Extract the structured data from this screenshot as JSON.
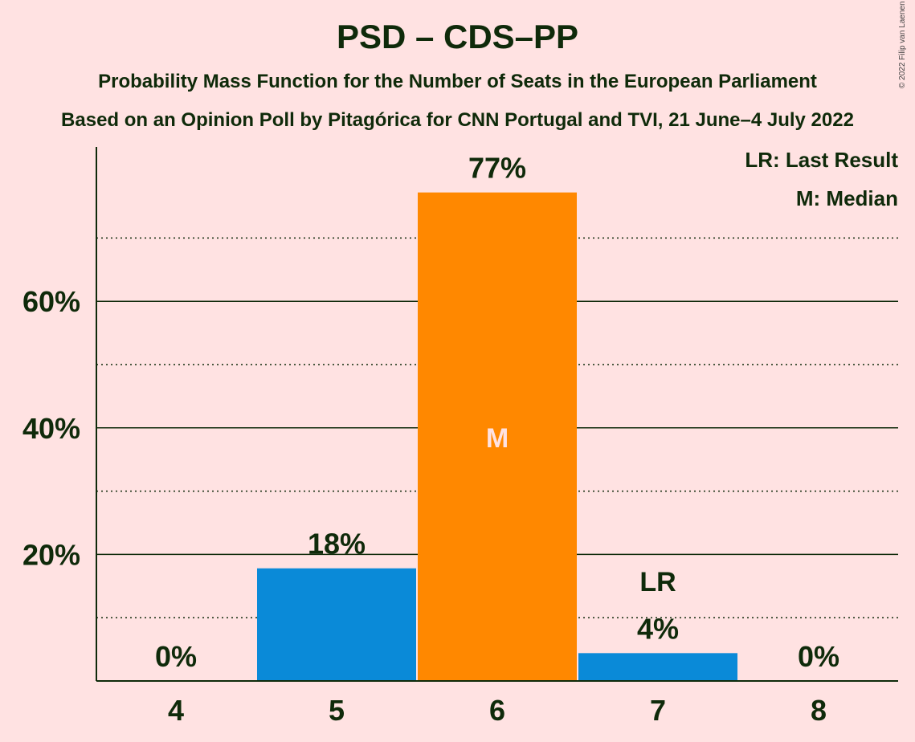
{
  "header": {
    "title": "PSD – CDS–PP",
    "subtitle1": "Probability Mass Function for the Number of Seats in the European Parliament",
    "subtitle2": "Based on an Opinion Poll by Pitagórica for CNN Portugal and TVI, 21 June–4 July 2022",
    "copyright": "© 2022 Filip van Laenen"
  },
  "legend": {
    "last_result": "LR: Last Result",
    "median": "M: Median"
  },
  "chart_data": {
    "type": "bar",
    "categories": [
      "4",
      "5",
      "6",
      "7",
      "8"
    ],
    "values": [
      0,
      18,
      77,
      4,
      0
    ],
    "value_labels": [
      "0%",
      "18%",
      "77%",
      "4%",
      "0%"
    ],
    "bar_fraction": [
      0,
      0.178,
      0.772,
      0.044,
      0
    ],
    "bar_colors": [
      "#0A8AD8",
      "#0A8AD8",
      "#FF8800",
      "#0A8AD8",
      "#0A8AD8"
    ],
    "median_index": 2,
    "median_label": "M",
    "last_result_index": 3,
    "last_result_label": "LR",
    "ylim": [
      0,
      85
    ],
    "yticks": [
      20,
      40,
      60
    ],
    "ytick_labels": [
      "20%",
      "40%",
      "60%"
    ],
    "minor_gridlines": [
      10,
      30,
      50,
      70
    ],
    "grid": true,
    "legend_position": "top-right",
    "colors": {
      "background": "#FFE2E2",
      "text": "#0F2A0A",
      "bar": "#0A8AD8",
      "median_bar": "#FF8800",
      "median_text": "#FFE2E2"
    }
  }
}
